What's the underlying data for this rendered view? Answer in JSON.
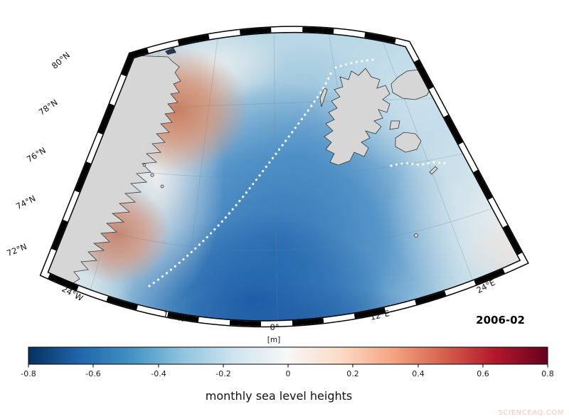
{
  "map": {
    "date_label": "2006-02",
    "lat_labels": [
      {
        "text": "80°N"
      },
      {
        "text": "78°N"
      },
      {
        "text": "76°N"
      },
      {
        "text": "74°N"
      },
      {
        "text": "72°N"
      }
    ],
    "lon_labels": [
      {
        "text": "24°W"
      },
      {
        "text": "12°W"
      },
      {
        "text": "0°"
      },
      {
        "text": "12°E"
      },
      {
        "text": "24°E"
      }
    ]
  },
  "colorbar": {
    "unit_label": "[m]",
    "tick_labels": [
      "-0.8",
      "-0.6",
      "-0.4",
      "-0.2",
      "0",
      "0.2",
      "0.4",
      "0.6",
      "0.8"
    ],
    "min": -0.8,
    "max": 0.8,
    "colors": [
      "#053061",
      "#2166ac",
      "#4393c3",
      "#92c5de",
      "#d1e5f0",
      "#f7f7f7",
      "#fddbc7",
      "#f4a582",
      "#d6604d",
      "#b2182b",
      "#67001f"
    ]
  },
  "caption": {
    "title": "monthly sea level heights"
  },
  "watermark": {
    "text": "SCIENCEAQ.COM"
  },
  "chart_data": {
    "type": "heatmap",
    "title": "monthly sea level heights",
    "date": "2006-02",
    "units": "m",
    "colormap": "RdBu_r",
    "value_range": [
      -0.8,
      0.8
    ],
    "colorbar_ticks": [
      -0.8,
      -0.6,
      -0.4,
      -0.2,
      0,
      0.2,
      0.4,
      0.6,
      0.8
    ],
    "projection": "polar conic sector over Greenland Sea / Svalbard region",
    "lat_gridlines": [
      "80°N",
      "78°N",
      "76°N",
      "74°N",
      "72°N"
    ],
    "lon_gridlines": [
      "24°W",
      "12°W",
      "0°",
      "12°E",
      "24°E"
    ],
    "features": [
      {
        "region": "central Greenland Sea / Norwegian Sea basin",
        "approx_value_m": -0.45,
        "description": "broad negative sea level anomaly (dark blue)"
      },
      {
        "region": "East Greenland shelf near 77-79°N",
        "approx_value_m": 0.2,
        "description": "positive anomaly patch (salmon/red) along coast"
      },
      {
        "region": "East Greenland shelf near 73-74°N",
        "approx_value_m": 0.15,
        "description": "second positive anomaly patch near coast"
      },
      {
        "region": "Barents Sea east and north of Svalbard",
        "approx_value_m": -0.1,
        "description": "weak negative anomaly (pale blue)"
      },
      {
        "region": "far southeast corner of domain",
        "approx_value_m": 0.05,
        "description": "near-zero to slightly positive (pale)"
      }
    ],
    "annotations": [
      {
        "type": "dotted-line",
        "label": "sea ice edge",
        "color": "#ffffff"
      },
      {
        "type": "land",
        "label": "Greenland east coast"
      },
      {
        "type": "land",
        "label": "Svalbard archipelago"
      }
    ]
  }
}
